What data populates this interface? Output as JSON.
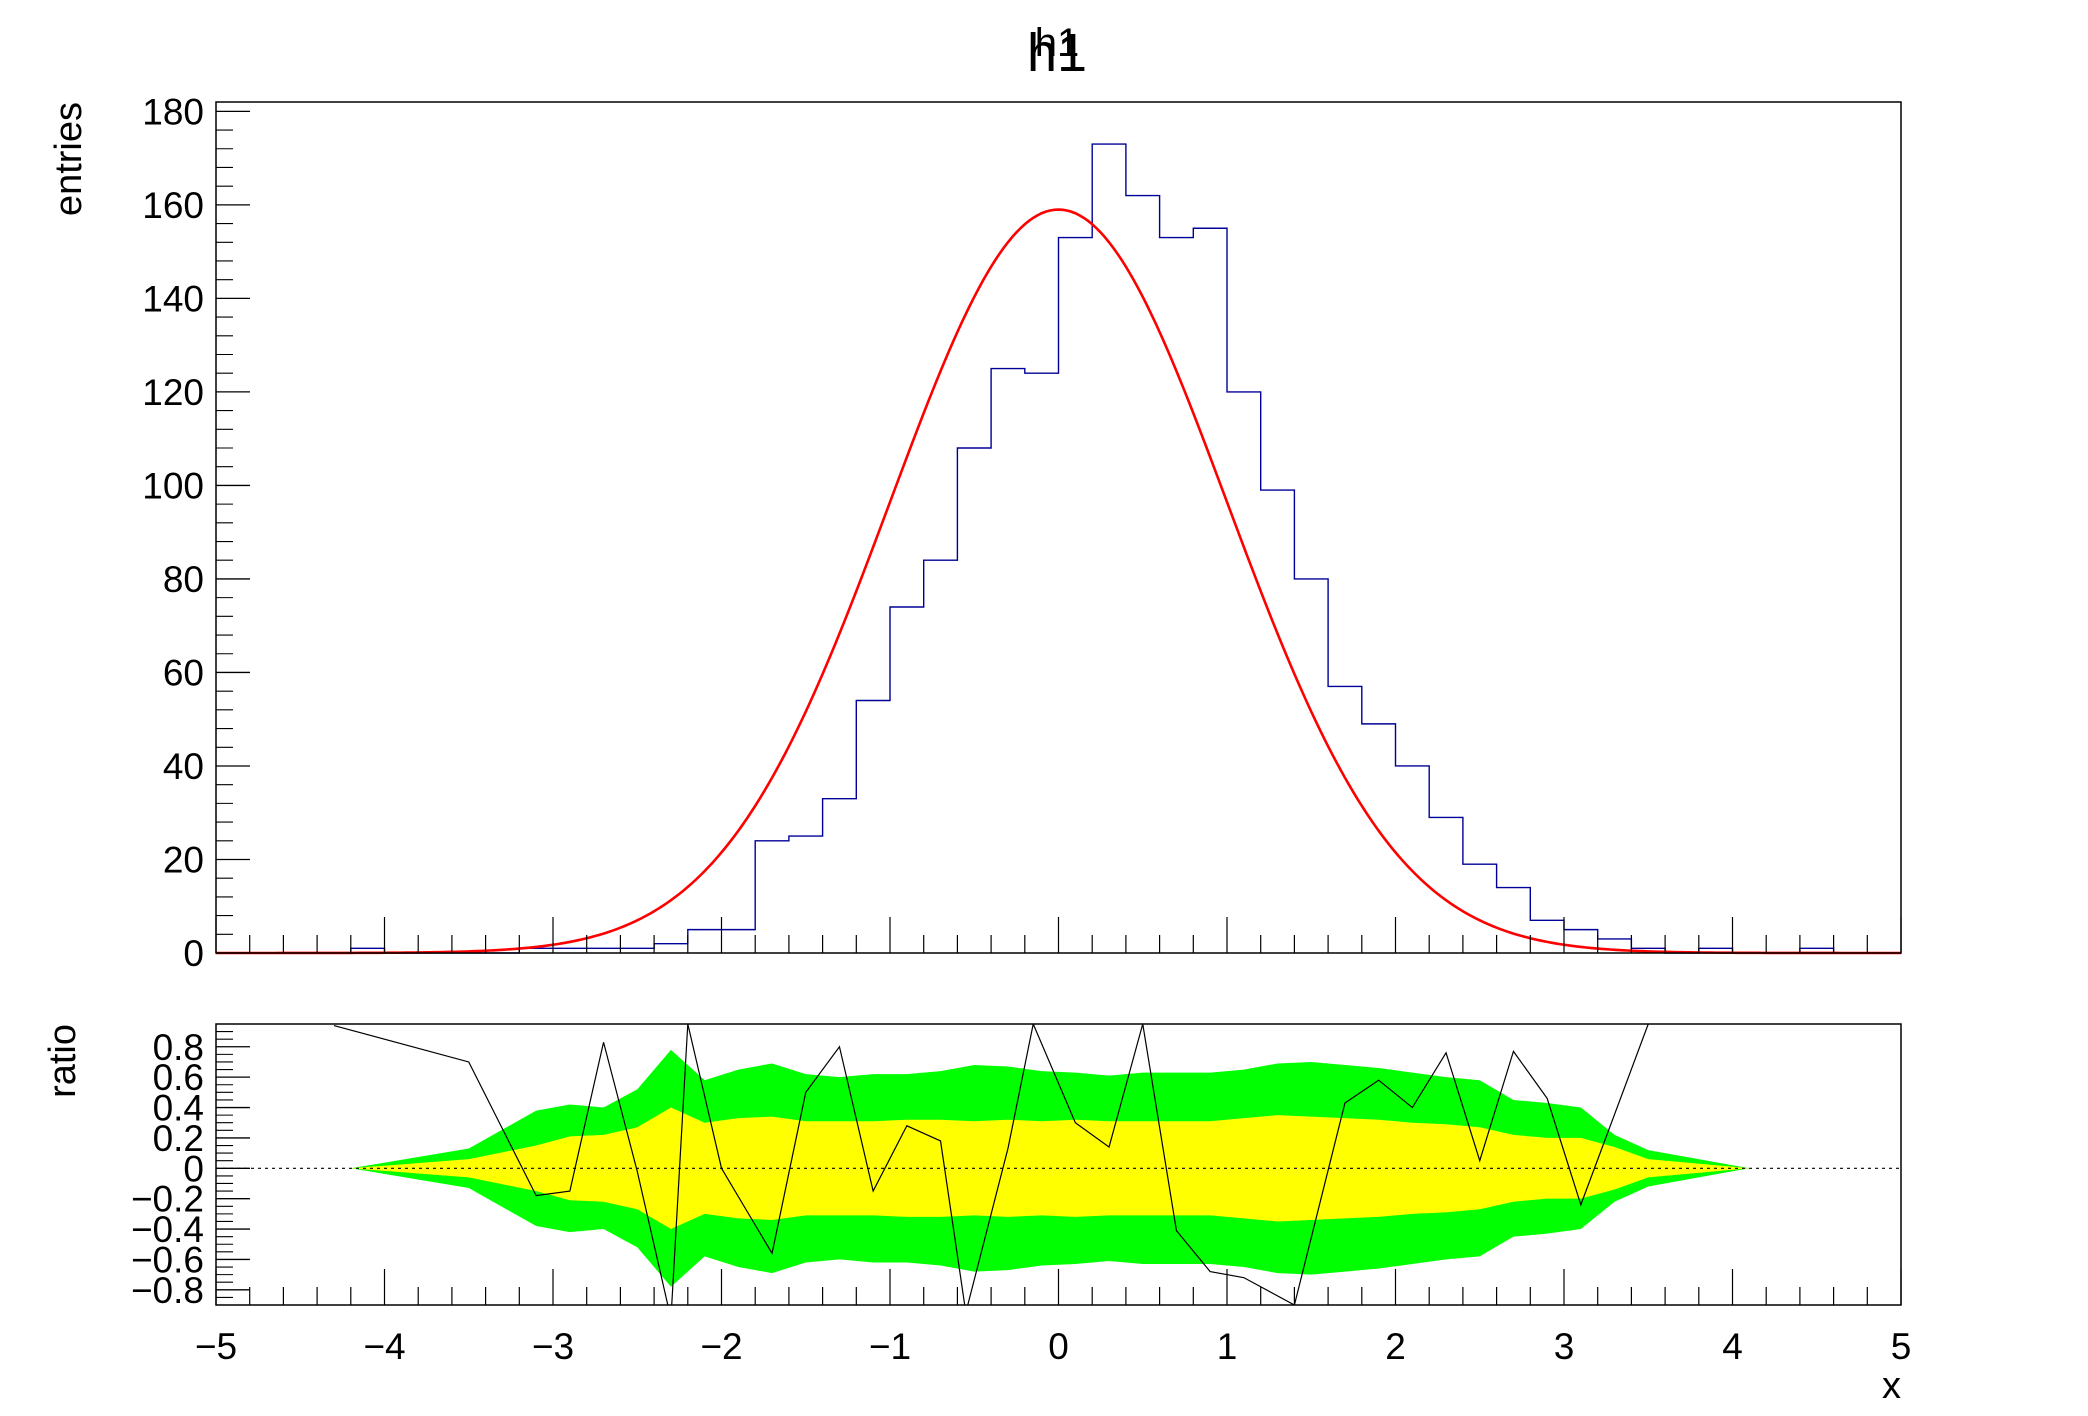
{
  "colors": {
    "histogram": "#000099",
    "fit": "#ff0000",
    "ratio_line": "#000000",
    "band_2sigma": "#00ff00",
    "band_1sigma": "#ffff00",
    "zero_line": "#000000",
    "frame": "#000000"
  },
  "chart_data": {
    "type": "line",
    "title": "h1",
    "title_overlay": "h1",
    "upper": {
      "ylabel": "entries",
      "xlim": [
        -5,
        5
      ],
      "ylim": [
        0,
        182
      ],
      "yticks": [
        0,
        20,
        40,
        60,
        80,
        100,
        120,
        140,
        160,
        180
      ],
      "ytick_labels": [
        "0",
        "20",
        "40",
        "60",
        "80",
        "100",
        "120",
        "140",
        "160",
        "180"
      ],
      "histogram": {
        "x_min": -5,
        "x_max": 5,
        "nbins": 50,
        "counts": [
          0,
          0,
          0,
          0,
          1,
          0,
          0,
          0,
          0,
          1,
          1,
          1,
          1,
          2,
          5,
          5,
          24,
          25,
          33,
          54,
          74,
          84,
          108,
          125,
          124,
          153,
          173,
          162,
          153,
          155,
          120,
          99,
          80,
          57,
          49,
          40,
          29,
          19,
          14,
          7,
          5,
          3,
          1,
          0,
          1,
          0,
          0,
          1,
          0,
          0
        ]
      },
      "fit": {
        "function": "gaus",
        "constant": 159,
        "mean": 0.0,
        "sigma": 1.0
      }
    },
    "lower": {
      "ylabel": "ratio",
      "xlabel": "x",
      "xlim": [
        -5,
        5
      ],
      "ylim": [
        -0.9,
        0.95
      ],
      "xticks": [
        -5,
        -4,
        -3,
        -2,
        -1,
        0,
        1,
        2,
        3,
        4,
        5
      ],
      "xtick_labels": [
        "−5",
        "−4",
        "−3",
        "−2",
        "−1",
        "0",
        "1",
        "2",
        "3",
        "4",
        "5"
      ],
      "yticks": [
        -0.8,
        -0.6,
        -0.4,
        -0.2,
        0,
        0.2,
        0.4,
        0.6,
        0.8
      ],
      "ytick_labels": [
        "−0.8",
        "−0.6",
        "−0.4",
        "−0.2",
        "0",
        "0.2",
        "0.4",
        "0.6",
        "0.8"
      ],
      "band_x": [
        -4.2,
        -3.5,
        -3.1,
        -2.9,
        -2.7,
        -2.5,
        -2.3,
        -2.1,
        -1.9,
        -1.7,
        -1.5,
        -1.3,
        -1.1,
        -0.9,
        -0.7,
        -0.5,
        -0.3,
        -0.1,
        0.1,
        0.3,
        0.5,
        0.7,
        0.9,
        1.1,
        1.3,
        1.5,
        1.7,
        1.9,
        2.1,
        2.3,
        2.5,
        2.7,
        2.9,
        3.1,
        3.3,
        3.5,
        4.1
      ],
      "band_1sigma": [
        0.0,
        0.06,
        0.15,
        0.21,
        0.22,
        0.27,
        0.4,
        0.3,
        0.33,
        0.34,
        0.31,
        0.31,
        0.31,
        0.32,
        0.32,
        0.31,
        0.32,
        0.31,
        0.32,
        0.31,
        0.31,
        0.31,
        0.31,
        0.33,
        0.35,
        0.34,
        0.33,
        0.32,
        0.3,
        0.29,
        0.27,
        0.22,
        0.2,
        0.2,
        0.14,
        0.06,
        0.0
      ],
      "band_2sigma": [
        0.0,
        0.13,
        0.38,
        0.42,
        0.4,
        0.52,
        0.78,
        0.58,
        0.65,
        0.69,
        0.62,
        0.6,
        0.62,
        0.62,
        0.64,
        0.68,
        0.67,
        0.64,
        0.63,
        0.61,
        0.63,
        0.63,
        0.63,
        0.65,
        0.69,
        0.7,
        0.68,
        0.66,
        0.63,
        0.6,
        0.58,
        0.45,
        0.43,
        0.4,
        0.22,
        0.12,
        0.0
      ],
      "ratio_points": [
        [
          -4.3,
          0.94
        ],
        [
          -3.5,
          0.7
        ],
        [
          -3.1,
          -0.18
        ],
        [
          -2.9,
          -0.15
        ],
        [
          -2.7,
          0.83
        ],
        [
          -2.5,
          -0.02
        ],
        [
          -2.3,
          -0.99
        ],
        [
          -2.2,
          0.95
        ],
        [
          -2.0,
          0.0
        ],
        [
          -1.7,
          -0.56
        ],
        [
          -1.5,
          0.5
        ],
        [
          -1.3,
          0.8
        ],
        [
          -1.1,
          -0.15
        ],
        [
          -0.9,
          0.28
        ],
        [
          -0.7,
          0.18
        ],
        [
          -0.55,
          -0.95
        ],
        [
          -0.3,
          0.13
        ],
        [
          -0.15,
          0.95
        ],
        [
          0.1,
          0.3
        ],
        [
          0.3,
          0.14
        ],
        [
          0.5,
          0.95
        ],
        [
          0.7,
          -0.41
        ],
        [
          0.9,
          -0.68
        ],
        [
          1.1,
          -0.72
        ],
        [
          1.4,
          -0.9
        ],
        [
          1.7,
          0.43
        ],
        [
          1.9,
          0.58
        ],
        [
          2.1,
          0.4
        ],
        [
          2.3,
          0.76
        ],
        [
          2.5,
          0.05
        ],
        [
          2.7,
          0.77
        ],
        [
          2.9,
          0.46
        ],
        [
          3.1,
          -0.24
        ],
        [
          3.5,
          0.95
        ]
      ]
    }
  }
}
